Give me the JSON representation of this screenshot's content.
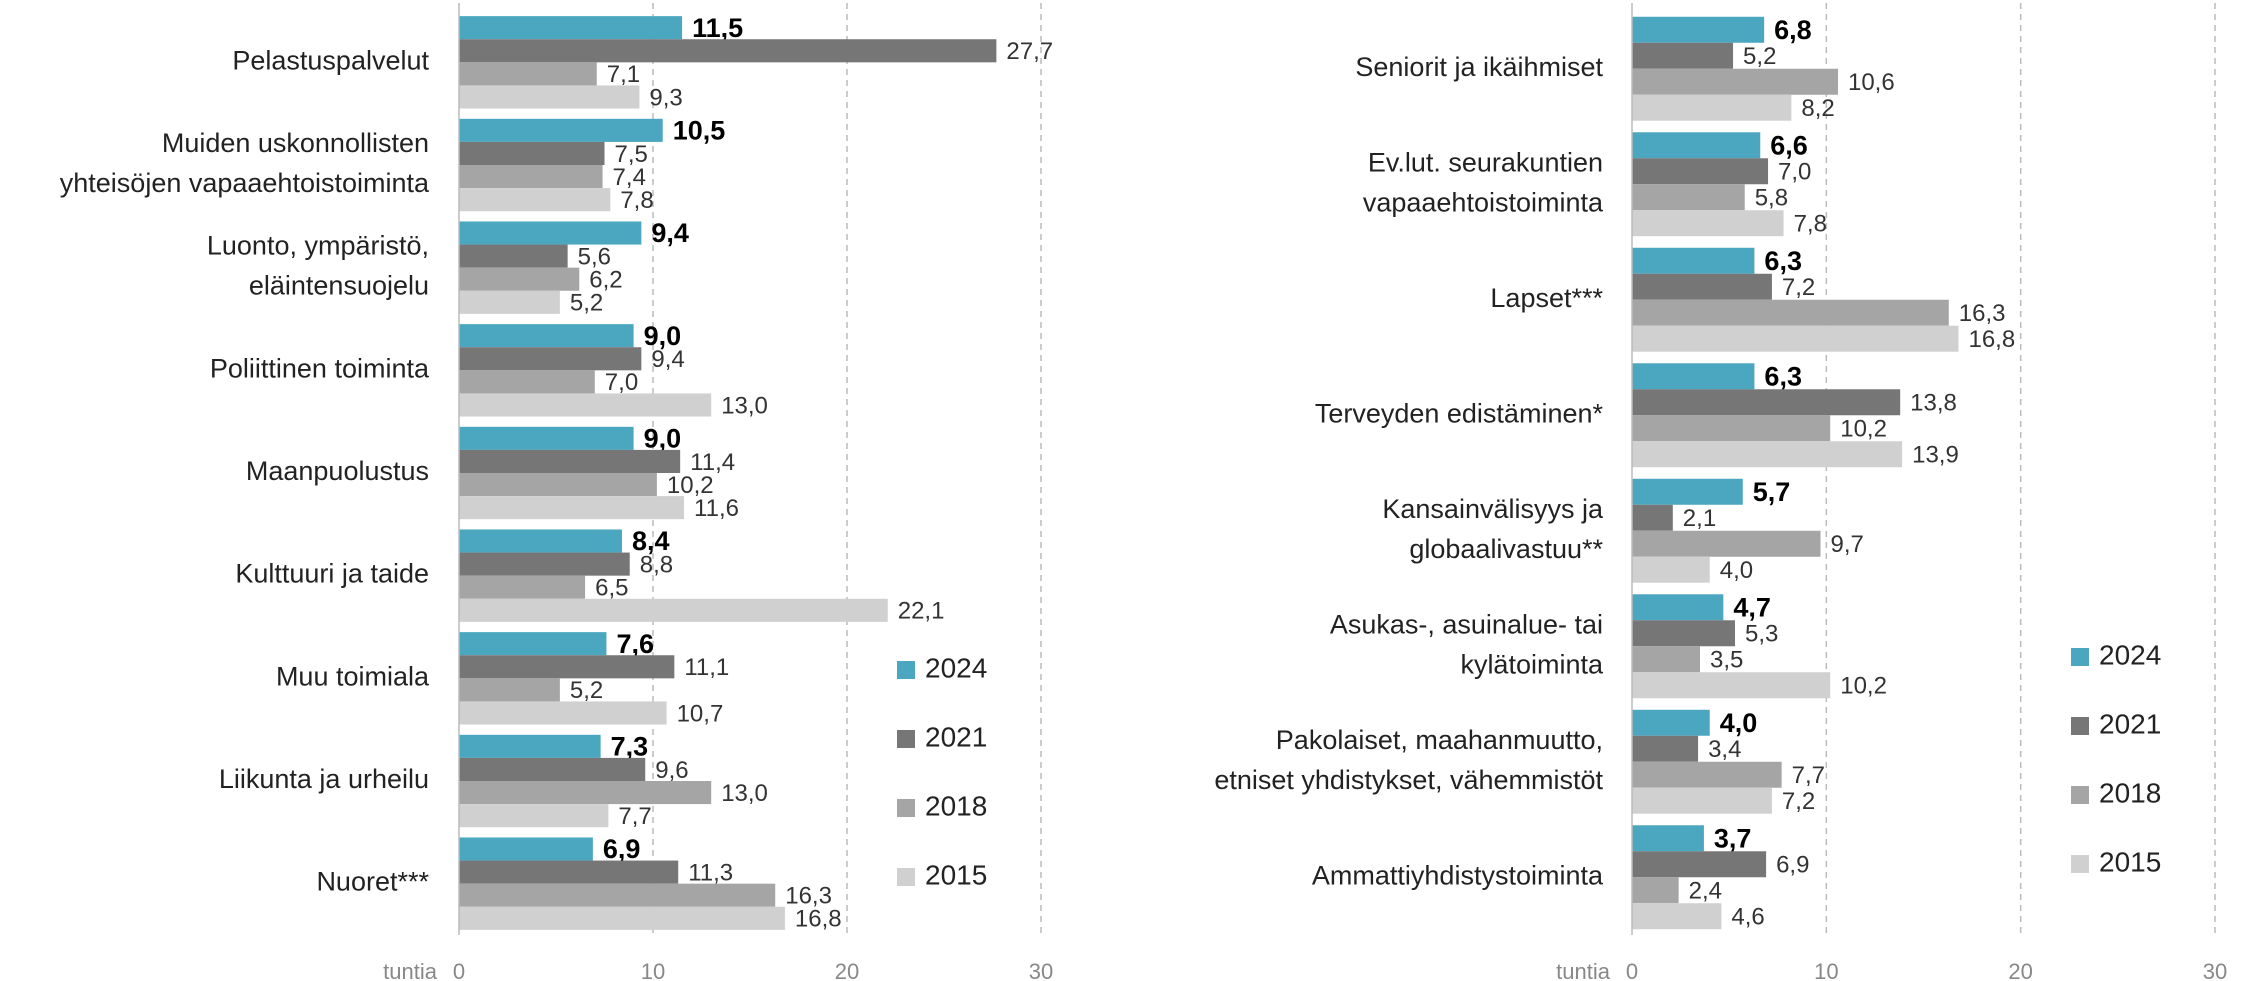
{
  "chart_data": [
    {
      "type": "bar",
      "orientation": "horizontal",
      "categories": [
        [
          "Pelastuspalvelut"
        ],
        [
          "Muiden uskonnollisten",
          "yhteisöjen vapaaehtoistoiminta"
        ],
        [
          "Luonto, ympäristö,",
          "eläintensuojelu"
        ],
        [
          "Poliittinen toiminta"
        ],
        [
          "Maanpuolustus"
        ],
        [
          "Kulttuuri ja taide"
        ],
        [
          "Muu toimiala"
        ],
        [
          "Liikunta ja urheilu"
        ],
        [
          "Nuoret***"
        ]
      ],
      "series": [
        {
          "name": "2024",
          "color": "#4ba6bf",
          "values": [
            11.5,
            10.5,
            9.4,
            9.0,
            9.0,
            8.4,
            7.6,
            7.3,
            6.9
          ],
          "value_labels": [
            "11,5",
            "10,5",
            "9,4",
            "9,0",
            "9,0",
            "8,4",
            "7,6",
            "7,3",
            "6,9"
          ]
        },
        {
          "name": "2021",
          "color": "#767676",
          "values": [
            27.7,
            7.5,
            5.6,
            9.4,
            11.4,
            8.8,
            11.1,
            9.6,
            11.3
          ],
          "value_labels": [
            "27,7",
            "7,5",
            "5,6",
            "9,4",
            "11,4",
            "8,8",
            "11,1",
            "9,6",
            "11,3"
          ]
        },
        {
          "name": "2018",
          "color": "#a5a5a5",
          "values": [
            7.1,
            7.4,
            6.2,
            7.0,
            10.2,
            6.5,
            5.2,
            13.0,
            16.3
          ],
          "value_labels": [
            "7,1",
            "7,4",
            "6,2",
            "7,0",
            "10,2",
            "6,5",
            "5,2",
            "13,0",
            "16,3"
          ]
        },
        {
          "name": "2015",
          "color": "#d0d0d0",
          "values": [
            9.3,
            7.8,
            5.2,
            13.0,
            11.6,
            22.1,
            10.7,
            7.7,
            16.8
          ],
          "value_labels": [
            "9,3",
            "7,8",
            "5,2",
            "13,0",
            "11,6",
            "22,1",
            "10,7",
            "7,7",
            "16,8"
          ]
        }
      ],
      "x_label": "tuntia",
      "xlim": [
        0,
        30
      ],
      "xticks": [
        0,
        10,
        20,
        30
      ],
      "grid": true,
      "legend": "right"
    },
    {
      "type": "bar",
      "orientation": "horizontal",
      "categories": [
        [
          "Seniorit ja ikäihmiset"
        ],
        [
          "Ev.lut. seurakuntien",
          "vapaaehtoistoiminta"
        ],
        [
          "Lapset***"
        ],
        [
          "Terveyden edistäminen*"
        ],
        [
          "Kansainvälisyys ja",
          "globaalivastuu**"
        ],
        [
          "Asukas-, asuinalue- tai",
          "kylätoiminta"
        ],
        [
          "Pakolaiset, maahanmuutto,",
          "etniset yhdistykset, vähemmistöt"
        ],
        [
          "Ammattiyhdistystoiminta"
        ]
      ],
      "series": [
        {
          "name": "2024",
          "color": "#4ba6bf",
          "values": [
            6.8,
            6.6,
            6.3,
            6.3,
            5.7,
            4.7,
            4.0,
            3.7
          ],
          "value_labels": [
            "6,8",
            "6,6",
            "6,3",
            "6,3",
            "5,7",
            "4,7",
            "4,0",
            "3,7"
          ]
        },
        {
          "name": "2021",
          "color": "#767676",
          "values": [
            5.2,
            7.0,
            7.2,
            13.8,
            2.1,
            5.3,
            3.4,
            6.9
          ],
          "value_labels": [
            "5,2",
            "7,0",
            "7,2",
            "13,8",
            "2,1",
            "5,3",
            "3,4",
            "6,9"
          ]
        },
        {
          "name": "2018",
          "color": "#a5a5a5",
          "values": [
            10.6,
            5.8,
            16.3,
            10.2,
            9.7,
            3.5,
            7.7,
            2.4
          ],
          "value_labels": [
            "10,6",
            "5,8",
            "16,3",
            "10,2",
            "9,7",
            "3,5",
            "7,7",
            "2,4"
          ]
        },
        {
          "name": "2015",
          "color": "#d0d0d0",
          "values": [
            8.2,
            7.8,
            16.8,
            13.9,
            4.0,
            10.2,
            7.2,
            4.6
          ],
          "value_labels": [
            "8,2",
            "7,8",
            "16,8",
            "13,9",
            "4,0",
            "10,2",
            "7,2",
            "4,6"
          ]
        }
      ],
      "x_label": "tuntia",
      "xlim": [
        0,
        30
      ],
      "xticks": [
        0,
        10,
        20,
        30
      ],
      "grid": true,
      "legend": "right"
    }
  ]
}
